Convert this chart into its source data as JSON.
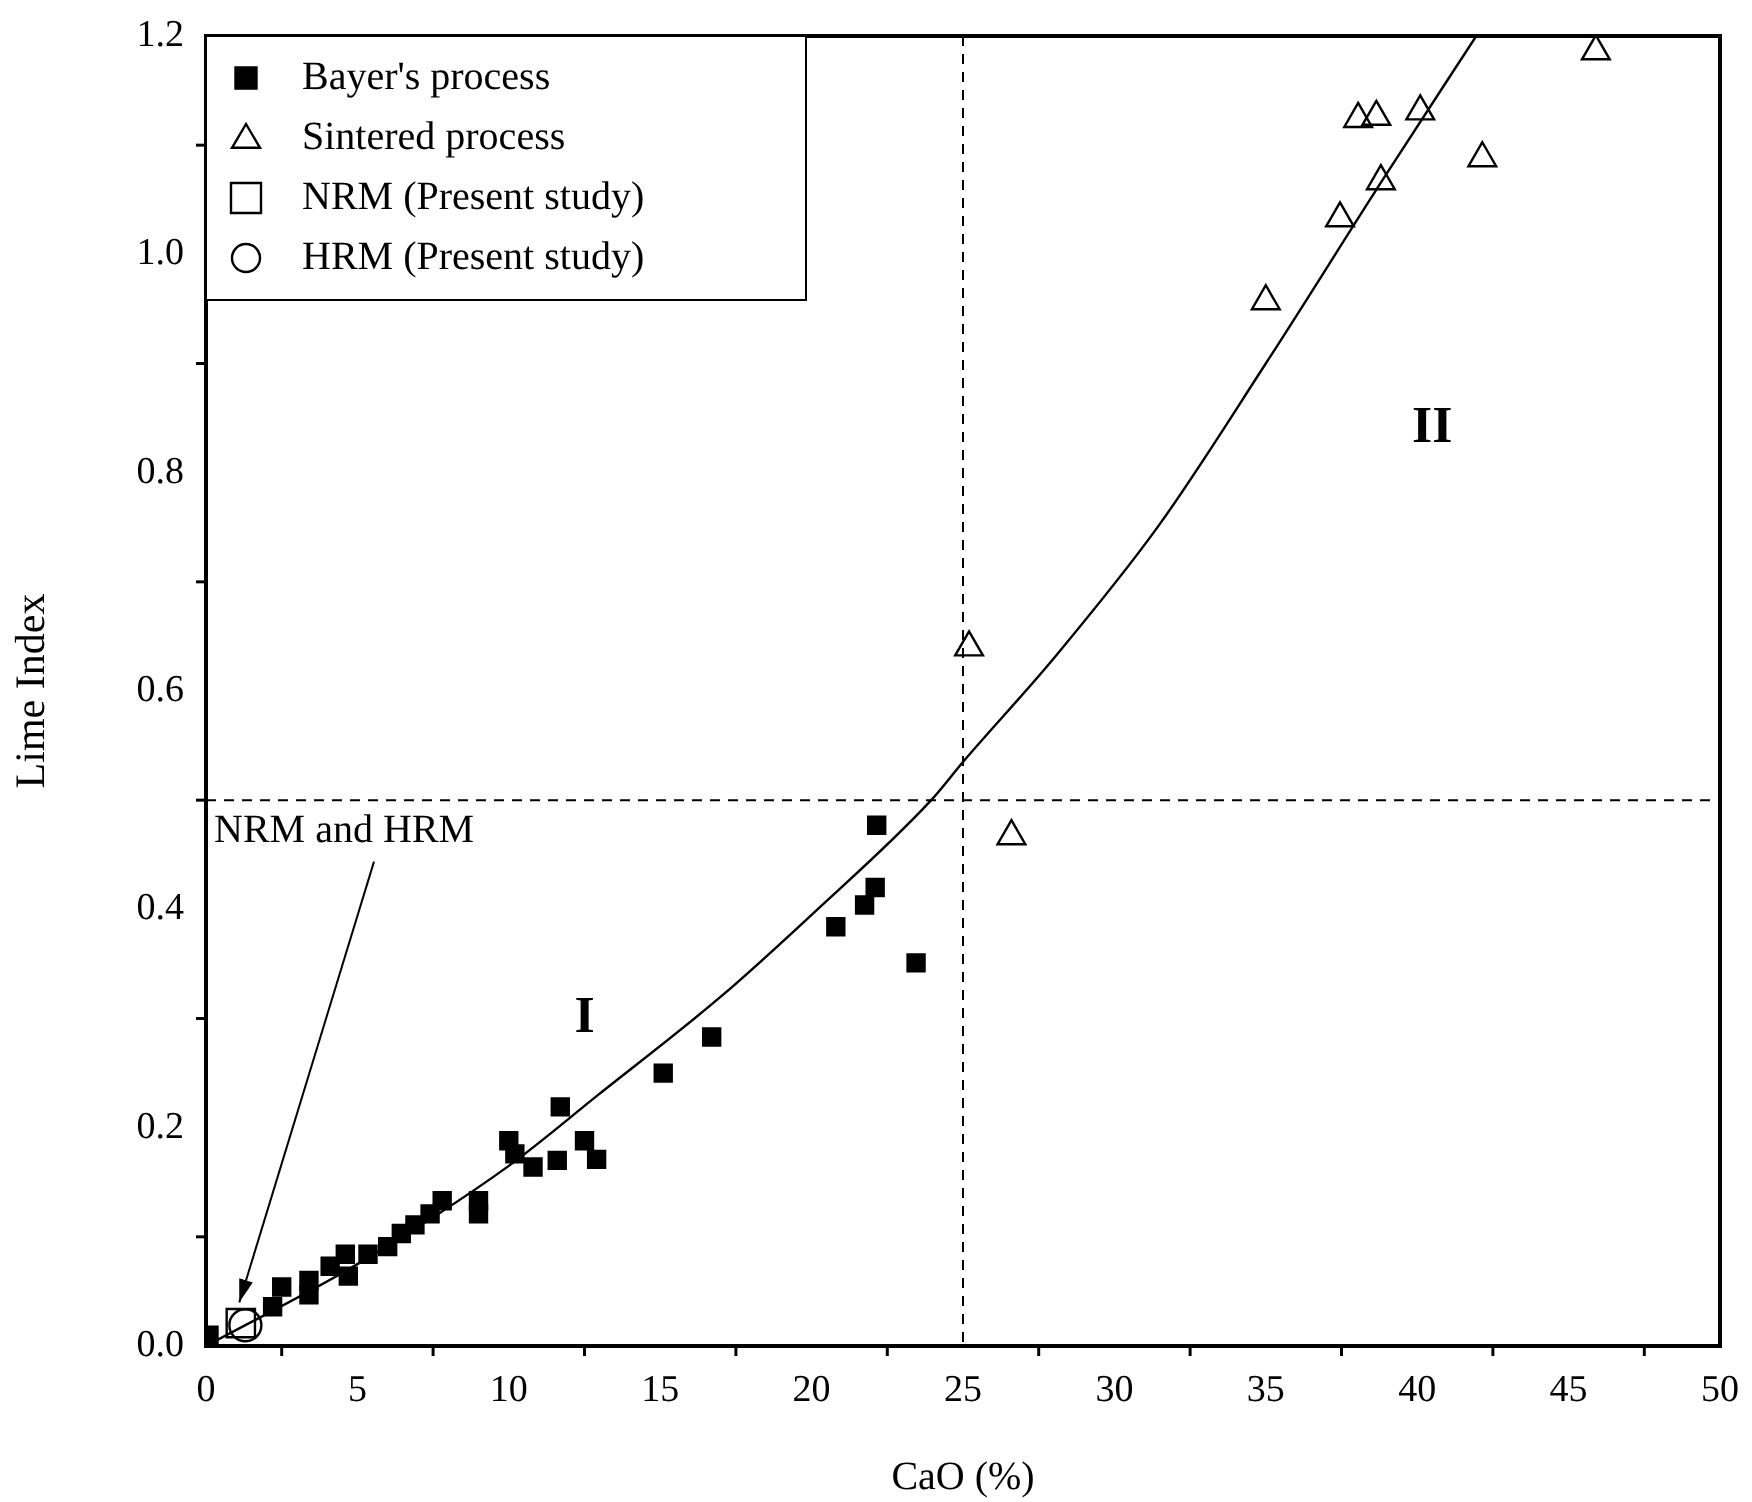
{
  "chart_data": {
    "type": "scatter",
    "xlabel": "CaO (%)",
    "ylabel": "Lime Index",
    "xlim": [
      0,
      50
    ],
    "xticks": [
      0,
      5,
      10,
      15,
      20,
      25,
      30,
      35,
      40,
      45,
      50
    ],
    "ylim": [
      0,
      1.2
    ],
    "yticks": [
      {
        "value": 0,
        "label": "0.0"
      },
      0.2,
      0.4,
      0.6,
      0.8,
      {
        "value": 1,
        "label": "1.0"
      },
      1.2
    ],
    "grid": false,
    "legend": "top left",
    "series": [
      {
        "name": "Bayer's process",
        "color": "#000000",
        "marker": "square",
        "x": [
          0.1,
          2.2,
          2.5,
          3.4,
          3.4,
          4.1,
          4.6,
          4.7,
          5.35,
          6.0,
          6.45,
          6.9,
          7.4,
          7.8,
          9.0,
          9.0,
          10.0,
          10.2,
          10.8,
          11.6,
          11.7,
          12.5,
          12.9,
          15.1,
          16.7,
          20.8,
          21.75,
          22.1,
          22.15,
          23.45
        ],
        "values": [
          0.01,
          0.036,
          0.054,
          0.047,
          0.06,
          0.073,
          0.084,
          0.064,
          0.084,
          0.091,
          0.103,
          0.111,
          0.121,
          0.133,
          0.133,
          0.121,
          0.188,
          0.176,
          0.164,
          0.17,
          0.219,
          0.188,
          0.171,
          0.25,
          0.283,
          0.384,
          0.404,
          0.42,
          0.477,
          0.351
        ]
      },
      {
        "name": "Sintered process",
        "color": "#000000",
        "marker": "triangle",
        "x": [
          25.2,
          26.6,
          35.0,
          37.45,
          38.05,
          38.65,
          38.8,
          40.1,
          42.15,
          45.9
        ],
        "values": [
          0.64,
          0.467,
          0.957,
          1.033,
          1.124,
          1.126,
          1.067,
          1.131,
          1.088,
          1.186
        ]
      },
      {
        "name": "NRM (Present study)",
        "color": "#000000",
        "marker": "square",
        "x": [
          1.15
        ],
        "values": [
          0.021
        ]
      },
      {
        "name": "HRM (Present study)",
        "color": "#000000",
        "marker": "circle",
        "x": [
          1.3
        ],
        "values": [
          0.019
        ]
      },
      {
        "type": "line",
        "color": "#000000",
        "marker": "none",
        "x": [
          0,
          5,
          10,
          12.95,
          17,
          20,
          23.95,
          25,
          28,
          31.45,
          35,
          38.9,
          41.95
        ],
        "values": [
          0,
          0.075,
          0.165,
          0.23,
          0.32,
          0.395,
          0.5,
          0.535,
          0.63,
          0.751,
          0.9,
          1.07,
          1.2
        ]
      }
    ],
    "ref_lines": [
      {
        "axis": "x",
        "value": 25,
        "line_style": "dashed"
      },
      {
        "axis": "y",
        "value": 0.5,
        "line_style": "dashed"
      }
    ],
    "annotations": [
      "I",
      "II",
      {
        "text": "NRM and HRM",
        "x": 1.1,
        "y": 0.04
      }
    ]
  }
}
